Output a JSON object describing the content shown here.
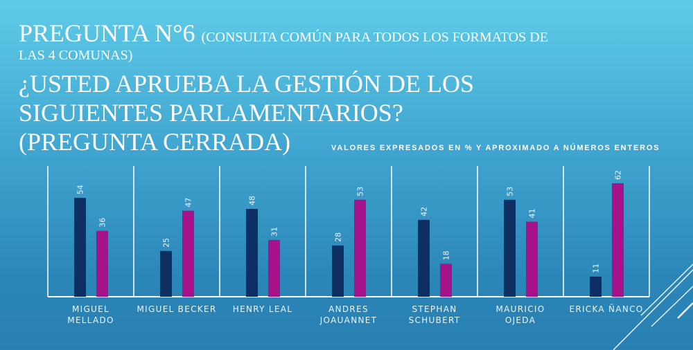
{
  "title": {
    "main": "PREGUNTA N°6",
    "note_part1": "(CONSULTA COMÚN PARA TODOS LOS FORMATOS DE",
    "note_part2": "LAS 4 COMUNAS)",
    "question_line1": "¿USTED APRUEBA LA GESTIÓN DE LOS",
    "question_line2": "SIGUIENTES PARLAMENTARIOS?",
    "question_line3": "(PREGUNTA CERRADA)"
  },
  "chart_data": {
    "type": "bar",
    "subtitle": "VALORES EXPRESADOS EN % Y APROXIMADO A NÚMEROS ENTEROS",
    "categories": [
      [
        "MIGUEL",
        "MELLADO"
      ],
      [
        "MIGUEL BECKER"
      ],
      [
        "HENRY LEAL"
      ],
      [
        "ANDRES",
        "JOAUANNET"
      ],
      [
        "STEPHAN",
        "SCHUBERT"
      ],
      [
        "MAURICIO",
        "OJEDA"
      ],
      [
        "ERICKA ÑANCO"
      ]
    ],
    "series": [
      {
        "values": [
          54,
          25,
          48,
          28,
          42,
          53,
          11
        ],
        "color": "#0d2f62"
      },
      {
        "values": [
          36,
          47,
          31,
          53,
          18,
          41,
          62
        ],
        "color": "#a5128a"
      }
    ],
    "ylim": [
      0,
      70
    ],
    "grid": false,
    "legend": "none",
    "data_labels": true
  }
}
